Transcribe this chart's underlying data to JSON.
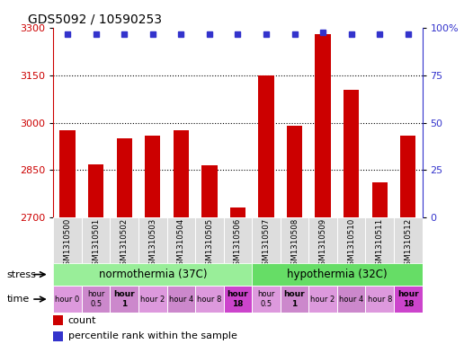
{
  "title": "GDS5092 / 10590253",
  "samples": [
    "GSM1310500",
    "GSM1310501",
    "GSM1310502",
    "GSM1310503",
    "GSM1310504",
    "GSM1310505",
    "GSM1310506",
    "GSM1310507",
    "GSM1310508",
    "GSM1310509",
    "GSM1310510",
    "GSM1310511",
    "GSM1310512"
  ],
  "bar_values": [
    2975,
    2868,
    2950,
    2960,
    2975,
    2865,
    2730,
    3150,
    2990,
    3280,
    3105,
    2810,
    2960
  ],
  "percentile_values": [
    97,
    97,
    97,
    97,
    97,
    97,
    97,
    97,
    97,
    98,
    97,
    97,
    97
  ],
  "bar_color": "#cc0000",
  "percentile_color": "#3333cc",
  "ylim_left": [
    2700,
    3300
  ],
  "ylim_right": [
    0,
    100
  ],
  "yticks_left": [
    2700,
    2850,
    3000,
    3150,
    3300
  ],
  "yticks_right": [
    0,
    25,
    50,
    75,
    100
  ],
  "stress_labels": [
    "normothermia (37C)",
    "hypothermia (32C)"
  ],
  "norm_color": "#99ee99",
  "hypo_color": "#66dd66",
  "time_labels": [
    "hour 0",
    "hour\n0.5",
    "hour\n1",
    "hour 2",
    "hour 4",
    "hour 8",
    "hour\n18",
    "hour\n0.5",
    "hour\n1",
    "hour 2",
    "hour 4",
    "hour 8",
    "hour\n18"
  ],
  "time_colors": [
    "#dd99dd",
    "#cc88cc",
    "#cc88cc",
    "#dd99dd",
    "#cc88cc",
    "#dd99dd",
    "#cc44cc",
    "#dd99dd",
    "#cc88cc",
    "#dd99dd",
    "#cc88cc",
    "#dd99dd",
    "#cc44cc"
  ],
  "time_bold": [
    false,
    false,
    true,
    false,
    false,
    false,
    true,
    false,
    true,
    false,
    false,
    false,
    true
  ],
  "sample_bg": "#dddddd",
  "background_color": "#ffffff"
}
